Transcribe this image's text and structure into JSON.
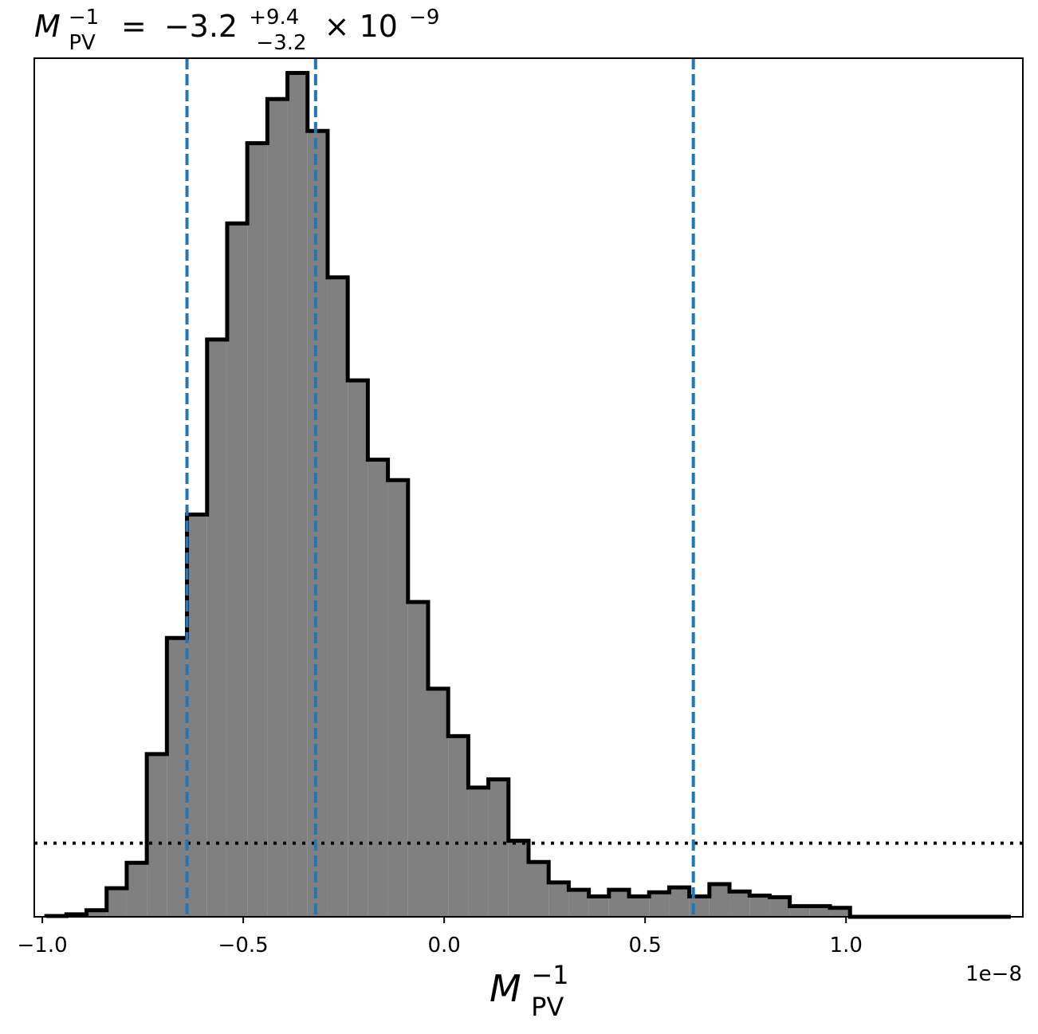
{
  "chart_data": {
    "type": "histogram",
    "title": {
      "symbol": "M",
      "subscript": "PV",
      "superscript": "−1",
      "equals": "=",
      "value": "−3.2",
      "upper": "+9.4",
      "lower": "−3.2",
      "multiplier": "× 10",
      "exponent": "−9"
    },
    "xlabel": {
      "symbol": "M",
      "subscript": "PV",
      "superscript": "−1"
    },
    "x_offset_text": "1e−8",
    "x_scale": 1e-08,
    "xlim": [
      -1.02,
      1.44
    ],
    "ylim": [
      0,
      1.05
    ],
    "y_axis_visible": false,
    "x_ticks": [
      -1.0,
      -0.5,
      0.0,
      0.5,
      1.0
    ],
    "x_tick_labels": [
      "−1.0",
      "−0.5",
      "0.0",
      "0.5",
      "1.0"
    ],
    "bin_edges": [
      -0.99,
      -0.94,
      -0.89,
      -0.84,
      -0.79,
      -0.74,
      -0.69,
      -0.64,
      -0.59,
      -0.54,
      -0.49,
      -0.44,
      -0.39,
      -0.34,
      -0.29,
      -0.24,
      -0.19,
      -0.14,
      -0.09,
      -0.04,
      0.01,
      0.06,
      0.11,
      0.16,
      0.21,
      0.26,
      0.31,
      0.36,
      0.41,
      0.46,
      0.51,
      0.56,
      0.61,
      0.66,
      0.71,
      0.76,
      0.81,
      0.86,
      0.91,
      0.96,
      1.01,
      1.06,
      1.11,
      1.16,
      1.21,
      1.26,
      1.31,
      1.36,
      1.41
    ],
    "counts": [
      0.001,
      0.003,
      0.008,
      0.035,
      0.066,
      0.199,
      0.341,
      0.492,
      0.706,
      0.848,
      0.946,
      1.0,
      1.032,
      0.961,
      0.782,
      0.656,
      0.559,
      0.534,
      0.385,
      0.279,
      0.221,
      0.158,
      0.168,
      0.093,
      0.067,
      0.042,
      0.033,
      0.025,
      0.033,
      0.025,
      0.03,
      0.036,
      0.025,
      0.04,
      0.031,
      0.026,
      0.024,
      0.013,
      0.013,
      0.011,
      0.0,
      0.0,
      0.0,
      0.0,
      0.0,
      0.0,
      0.0,
      0.0
    ],
    "histogram_fill": "#808080",
    "histogram_edge": "#000000",
    "vlines": [
      {
        "x": -0.64,
        "color": "#1f77b4",
        "style": "dashed"
      },
      {
        "x": -0.32,
        "color": "#1f77b4",
        "style": "dashed"
      },
      {
        "x": 0.62,
        "color": "#1f77b4",
        "style": "dashed"
      }
    ],
    "hline": {
      "y": 0.09,
      "color": "#000000",
      "style": "dotted"
    }
  }
}
